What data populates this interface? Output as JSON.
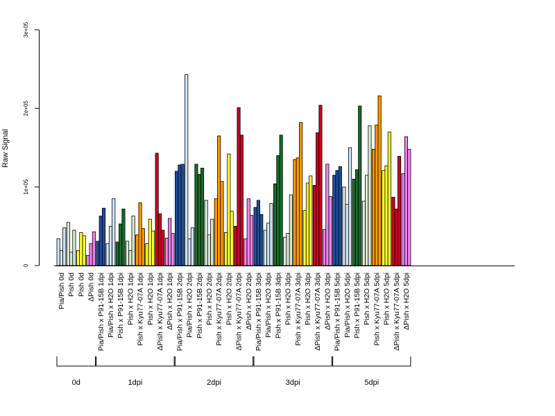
{
  "chart_data": {
    "type": "bar",
    "ylabel": "Raw Signal",
    "ylim": [
      0,
      300000
    ],
    "yticks": [
      {
        "value": 0,
        "label": "0"
      },
      {
        "value": 100000,
        "label": "1e+05"
      },
      {
        "value": 200000,
        "label": "2e+05"
      },
      {
        "value": 300000,
        "label": "3e+05"
      }
    ],
    "grid": false,
    "legend": "none",
    "categories": [
      "Pia/Pish 0d",
      "Pish 0d",
      "Pish 0d",
      "ΔPish 0d",
      "Pia/Pish x P91-15B 1dpi",
      "Pia/Pish x H2O 1dpi",
      "Pish x P91-15B 1dpi",
      "Pish x H2O 1dpi",
      "Pish x Kyu77-07A 1dpi",
      "Pish x H2O 1dpi",
      "ΔPish x Kyu77-07A 1dpi",
      "ΔPish x H2O 1dpi",
      "Pia/Pish x P91-15B 2dpi",
      "Pia/Pish x H2O 2dpi",
      "Pish x P91-15B 2dpi",
      "Pish x H2O 2dpi",
      "Pish x Kyu77-07A 2dpi",
      "Pish x H2O 2dpi",
      "ΔPish x Kyu77-07A 2dpi",
      "ΔPish x H2O 2dpi",
      "Pia/Pish x P91-15B 3dpi",
      "Pia/Pish x H2O 3dpi",
      "Pish x P91-15B 3dpi",
      "Pish x H2O 3dpi",
      "Pish x Kyu77-07A 3dpi",
      "Pish x H2O 3dpi",
      "ΔPish x Kyu77-07A 3dpi",
      "ΔPish x H2O 3dpi",
      "Pia/Pish x P91-15B 5dpi",
      "Pia/Pish x H2O 5dpi",
      "Pish x P91-15B 5dpi",
      "Pish x H2O 5dpi",
      "Pish x Kyu77-07A 5dpi",
      "Pish x H2O 5dpi",
      "ΔPish x Kyu77-07A 5dpi",
      "ΔPish x H2O 5dpi"
    ],
    "colors": [
      "#cfe2f3",
      "#d9ead3",
      "#ffff33",
      "#ee82ee",
      "#1f4e99",
      "#cfe2f3",
      "#1a6b2a",
      "#d9ead3",
      "#ff9900",
      "#ffff33",
      "#cc0022",
      "#ee82ee",
      "#1f4e99",
      "#cfe2f3",
      "#1a6b2a",
      "#d9ead3",
      "#ff9900",
      "#ffff33",
      "#cc0022",
      "#ee82ee",
      "#1f4e99",
      "#cfe2f3",
      "#1a6b2a",
      "#d9ead3",
      "#ff9900",
      "#ffff33",
      "#cc0022",
      "#ee82ee",
      "#1f4e99",
      "#cfe2f3",
      "#1a6b2a",
      "#d9ead3",
      "#ff9900",
      "#ffff33",
      "#cc0022",
      "#ee82ee"
    ],
    "values": [
      [
        34000,
        19000,
        48000
      ],
      [
        55000,
        17000,
        45000
      ],
      [
        19000,
        42000,
        38000
      ],
      [
        13000,
        28000,
        43000
      ],
      [
        31000,
        63000,
        73000
      ],
      [
        28000,
        50000,
        85000
      ],
      [
        30000,
        53000,
        72000
      ],
      [
        31000,
        19000,
        63000
      ],
      [
        39000,
        80000,
        47000
      ],
      [
        28000,
        59000,
        44000
      ],
      [
        143000,
        66000,
        45000
      ],
      [
        35000,
        60000,
        41000
      ],
      [
        120000,
        128000,
        129000
      ],
      [
        243000,
        34000,
        48000
      ],
      [
        129000,
        116000,
        124000
      ],
      [
        83000,
        39000,
        59000
      ],
      [
        85000,
        165000,
        107000
      ],
      [
        42000,
        142000,
        69000
      ],
      [
        50000,
        201000,
        166000
      ],
      [
        34000,
        85000,
        64000
      ],
      [
        74000,
        83000,
        65000
      ],
      [
        45000,
        54000,
        79000
      ],
      [
        104000,
        140000,
        166000
      ],
      [
        36000,
        41000,
        90000
      ],
      [
        135000,
        137000,
        182000
      ],
      [
        70000,
        105000,
        114000
      ],
      [
        102000,
        169000,
        204000
      ],
      [
        46000,
        129000,
        88000
      ],
      [
        115000,
        121000,
        126000
      ],
      [
        100000,
        78000,
        150000
      ],
      [
        110000,
        122000,
        203000
      ],
      [
        82000,
        115000,
        178000
      ],
      [
        148000,
        179000,
        216000
      ],
      [
        121000,
        127000,
        170000
      ],
      [
        87000,
        72000,
        139000
      ],
      [
        117000,
        164000,
        148000
      ]
    ],
    "groups": [
      {
        "label": "0d",
        "start": 0,
        "end": 3
      },
      {
        "label": "1dpi",
        "start": 4,
        "end": 11
      },
      {
        "label": "2dpi",
        "start": 12,
        "end": 19
      },
      {
        "label": "3dpi",
        "start": 20,
        "end": 27
      },
      {
        "label": "5dpi",
        "start": 28,
        "end": 35
      }
    ]
  }
}
